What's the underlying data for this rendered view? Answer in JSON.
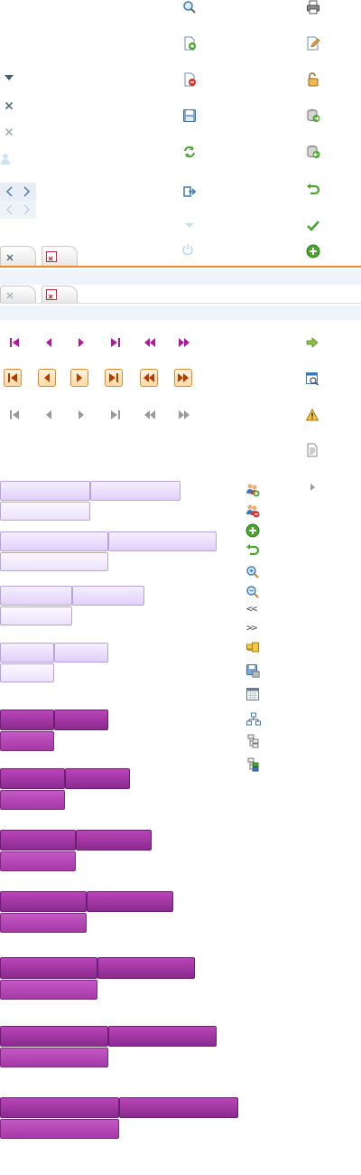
{
  "colors": {
    "accent_orange": "#f08a24",
    "pager_magenta": "#b0189d",
    "light_bar": "#e5d6fb",
    "dark_bar": "#9c349e",
    "icon_green": "#4aa52e",
    "icon_blue": "#3b78b8"
  },
  "icons": {
    "column_middle": [
      "search-icon",
      "page-add-icon",
      "page-remove-icon",
      "save-icon",
      "refresh-icon",
      "exit-icon",
      "disabled-arrow-icon",
      "power-icon"
    ],
    "column_right": [
      "print-icon",
      "edit-icon",
      "unlock-icon",
      "db-export-icon",
      "db-import-icon",
      "undo-icon",
      "check-icon",
      "add-circle-icon"
    ],
    "column_left": [
      "dropdown-arrow-icon",
      "close-icon",
      "close-disabled-icon",
      "user-icon",
      "nav-arrows-icon",
      "nav-arrows-disabled-icon"
    ],
    "tabs_top": [
      "tab-close-icon",
      "tab-close-red-icon"
    ],
    "tabs_bottom": [
      "tab-close-icon",
      "tab-close-red-icon"
    ],
    "pager_rows": [
      "first",
      "prev",
      "next",
      "last",
      "fast-back",
      "fast-forward"
    ],
    "right_misc": [
      "go-icon",
      "preview-icon",
      "warning-icon",
      "document-icon",
      "submenu-arrow-icon"
    ],
    "toolbar_list": [
      "users-add-icon",
      "users-remove-icon",
      "add-circle-icon",
      "undo-icon",
      "zoom-in-icon",
      "zoom-out-icon",
      "collapse-left-icon",
      "expand-right-icon",
      "coins-icon",
      "save-as-icon",
      "calendar-icon",
      "hierarchy-icon",
      "tree-icon",
      "tree-add-icon"
    ]
  },
  "light_bars": [
    {
      "top_left": 1,
      "top_right": 1,
      "bottom": 1
    },
    {
      "top_left": 1,
      "top_right": 1,
      "bottom": 1
    },
    {
      "top_left": 1,
      "top_right": 1,
      "bottom": 1
    },
    {
      "top_left": 1,
      "top_right": 1,
      "bottom": 1
    }
  ],
  "dark_bars_count": 7,
  "labels": {
    "collapse_left": "<<",
    "expand_right": ">>"
  }
}
